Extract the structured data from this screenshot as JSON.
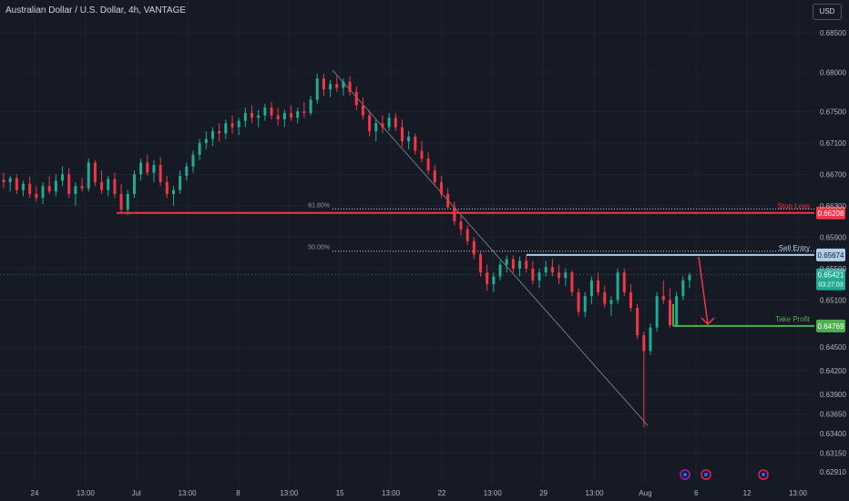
{
  "header": {
    "symbol": "Australian Dollar / U.S. Dollar, 4h, VANTAGE",
    "currency_button": "USD"
  },
  "colors": {
    "background": "#161a25",
    "grid": "#1f2330",
    "up": "#22ab94",
    "down": "#f23645",
    "stop_loss": "#f23645",
    "take_profit": "#4caf50",
    "sell_entry": "#b0cfe6",
    "axis_text": "#b2b5be"
  },
  "chart_data": {
    "type": "candlestick",
    "ylim": [
      0.6275,
      0.6878
    ],
    "y_ticks": [
      "0.68500",
      "0.68000",
      "0.67500",
      "0.67100",
      "0.66700",
      "0.66300",
      "0.65900",
      "0.65500",
      "0.65100",
      "0.64500",
      "0.64200",
      "0.63900",
      "0.63650",
      "0.63400",
      "0.63150",
      "0.62910"
    ],
    "x_ticks": [
      "24",
      "13:00",
      "Jul",
      "13:00",
      "8",
      "13:00",
      "15",
      "13:00",
      "22",
      "13:00",
      "29",
      "13:00",
      "Aug",
      "6",
      "12",
      "13:00"
    ],
    "series": [
      {
        "values": [
          [
            0.6663,
            0.6672,
            0.6652,
            0.666
          ],
          [
            0.666,
            0.6668,
            0.6648,
            0.6665
          ],
          [
            0.6665,
            0.667,
            0.6645,
            0.665
          ],
          [
            0.665,
            0.6662,
            0.6642,
            0.6658
          ],
          [
            0.6658,
            0.6667,
            0.664,
            0.6645
          ],
          [
            0.6645,
            0.6655,
            0.6635,
            0.664
          ],
          [
            0.664,
            0.666,
            0.6632,
            0.6655
          ],
          [
            0.6655,
            0.6668,
            0.6645,
            0.6648
          ],
          [
            0.6648,
            0.667,
            0.6642,
            0.6662
          ],
          [
            0.6662,
            0.668,
            0.6655,
            0.667
          ],
          [
            0.667,
            0.6678,
            0.664,
            0.6645
          ],
          [
            0.6645,
            0.666,
            0.663,
            0.6655
          ],
          [
            0.6655,
            0.6665,
            0.6648,
            0.6652
          ],
          [
            0.6652,
            0.669,
            0.6648,
            0.6685
          ],
          [
            0.6685,
            0.6688,
            0.6655,
            0.666
          ],
          [
            0.666,
            0.6675,
            0.6645,
            0.665
          ],
          [
            0.665,
            0.6668,
            0.6642,
            0.6664
          ],
          [
            0.6664,
            0.6672,
            0.664,
            0.6645
          ],
          [
            0.6645,
            0.6658,
            0.662,
            0.6625
          ],
          [
            0.6625,
            0.665,
            0.6618,
            0.6645
          ],
          [
            0.6645,
            0.6675,
            0.664,
            0.667
          ],
          [
            0.667,
            0.669,
            0.6662,
            0.6685
          ],
          [
            0.6685,
            0.6695,
            0.6668,
            0.6672
          ],
          [
            0.6672,
            0.6688,
            0.666,
            0.6682
          ],
          [
            0.6682,
            0.6692,
            0.6655,
            0.666
          ],
          [
            0.666,
            0.6668,
            0.664,
            0.6645
          ],
          [
            0.6645,
            0.6655,
            0.663,
            0.665
          ],
          [
            0.665,
            0.6675,
            0.6645,
            0.6668
          ],
          [
            0.6668,
            0.6685,
            0.6662,
            0.668
          ],
          [
            0.668,
            0.67,
            0.6672,
            0.6695
          ],
          [
            0.6695,
            0.6715,
            0.6688,
            0.671
          ],
          [
            0.671,
            0.6725,
            0.6702,
            0.6715
          ],
          [
            0.6715,
            0.673,
            0.6706,
            0.6725
          ],
          [
            0.6725,
            0.6735,
            0.6712,
            0.6722
          ],
          [
            0.6722,
            0.674,
            0.6715,
            0.6735
          ],
          [
            0.6735,
            0.6745,
            0.6722,
            0.673
          ],
          [
            0.673,
            0.6742,
            0.672,
            0.6738
          ],
          [
            0.6738,
            0.6755,
            0.673,
            0.6748
          ],
          [
            0.6748,
            0.6758,
            0.6735,
            0.6742
          ],
          [
            0.6742,
            0.6752,
            0.673,
            0.6745
          ],
          [
            0.6745,
            0.676,
            0.6738,
            0.6755
          ],
          [
            0.6755,
            0.6762,
            0.674,
            0.6745
          ],
          [
            0.6745,
            0.6755,
            0.6732,
            0.674
          ],
          [
            0.674,
            0.6752,
            0.673,
            0.6748
          ],
          [
            0.6748,
            0.6758,
            0.6738,
            0.6742
          ],
          [
            0.6742,
            0.6755,
            0.6735,
            0.675
          ],
          [
            0.675,
            0.6762,
            0.6742,
            0.6748
          ],
          [
            0.6748,
            0.677,
            0.6745,
            0.6765
          ],
          [
            0.6765,
            0.6798,
            0.676,
            0.6792
          ],
          [
            0.6792,
            0.6798,
            0.677,
            0.6778
          ],
          [
            0.6778,
            0.679,
            0.6768,
            0.6785
          ],
          [
            0.6785,
            0.6795,
            0.6775,
            0.678
          ],
          [
            0.678,
            0.6792,
            0.677,
            0.6788
          ],
          [
            0.6788,
            0.6795,
            0.677,
            0.6775
          ],
          [
            0.6775,
            0.6782,
            0.6752,
            0.6758
          ],
          [
            0.6758,
            0.6768,
            0.674,
            0.6745
          ],
          [
            0.6745,
            0.6752,
            0.6718,
            0.6725
          ],
          [
            0.6725,
            0.674,
            0.6712,
            0.6735
          ],
          [
            0.6735,
            0.6745,
            0.6722,
            0.673
          ],
          [
            0.673,
            0.6748,
            0.6725,
            0.6742
          ],
          [
            0.6742,
            0.6748,
            0.6725,
            0.673
          ],
          [
            0.673,
            0.674,
            0.6705,
            0.6712
          ],
          [
            0.6712,
            0.6725,
            0.6702,
            0.6718
          ],
          [
            0.6718,
            0.6722,
            0.6695,
            0.67
          ],
          [
            0.67,
            0.6712,
            0.6685,
            0.669
          ],
          [
            0.669,
            0.6698,
            0.667,
            0.6675
          ],
          [
            0.6675,
            0.6682,
            0.6655,
            0.666
          ],
          [
            0.666,
            0.6668,
            0.664,
            0.6645
          ],
          [
            0.6645,
            0.6652,
            0.6625,
            0.6628
          ],
          [
            0.6628,
            0.6635,
            0.6605,
            0.661
          ],
          [
            0.661,
            0.6618,
            0.6592,
            0.66
          ],
          [
            0.66,
            0.6605,
            0.658,
            0.6585
          ],
          [
            0.6585,
            0.659,
            0.6562,
            0.6568
          ],
          [
            0.6568,
            0.6572,
            0.654,
            0.6545
          ],
          [
            0.6545,
            0.6555,
            0.6522,
            0.653
          ],
          [
            0.653,
            0.6545,
            0.652,
            0.654
          ],
          [
            0.654,
            0.656,
            0.6535,
            0.6555
          ],
          [
            0.6555,
            0.6567,
            0.6545,
            0.6562
          ],
          [
            0.6562,
            0.6567,
            0.6545,
            0.655
          ],
          [
            0.655,
            0.6565,
            0.654,
            0.656
          ],
          [
            0.656,
            0.6567,
            0.6545,
            0.655
          ],
          [
            0.655,
            0.656,
            0.653,
            0.6535
          ],
          [
            0.6535,
            0.655,
            0.6525,
            0.6545
          ],
          [
            0.6545,
            0.656,
            0.654,
            0.6552
          ],
          [
            0.6552,
            0.6562,
            0.654,
            0.6545
          ],
          [
            0.6545,
            0.6555,
            0.653,
            0.6538
          ],
          [
            0.6538,
            0.655,
            0.6528,
            0.6545
          ],
          [
            0.6545,
            0.6548,
            0.6515,
            0.652
          ],
          [
            0.652,
            0.6525,
            0.649,
            0.6495
          ],
          [
            0.6495,
            0.652,
            0.6488,
            0.6515
          ],
          [
            0.6515,
            0.654,
            0.6505,
            0.6535
          ],
          [
            0.6535,
            0.6545,
            0.6515,
            0.652
          ],
          [
            0.652,
            0.6528,
            0.65,
            0.6505
          ],
          [
            0.6505,
            0.6515,
            0.649,
            0.651
          ],
          [
            0.651,
            0.655,
            0.6505,
            0.6545
          ],
          [
            0.6545,
            0.655,
            0.6515,
            0.652
          ],
          [
            0.652,
            0.653,
            0.6495,
            0.65
          ],
          [
            0.65,
            0.6505,
            0.646,
            0.6465
          ],
          [
            0.6465,
            0.647,
            0.6348,
            0.6445
          ],
          [
            0.6445,
            0.648,
            0.644,
            0.6475
          ],
          [
            0.6475,
            0.652,
            0.647,
            0.6515
          ],
          [
            0.6515,
            0.6535,
            0.6505,
            0.651
          ],
          [
            0.651,
            0.6525,
            0.6475,
            0.6478
          ],
          [
            0.6478,
            0.652,
            0.6476,
            0.6515
          ],
          [
            0.6515,
            0.654,
            0.651,
            0.6535
          ],
          [
            0.6535,
            0.6545,
            0.6525,
            0.6542
          ]
        ]
      }
    ],
    "levels": [
      {
        "label": "Stop Loss",
        "price": "0.66208",
        "value": 0.66208
      },
      {
        "label": "Sell Entry",
        "price": "0.65674",
        "value": 0.65674
      },
      {
        "label": "Take Profit",
        "price": "0.64769",
        "value": 0.64769
      }
    ],
    "fib_levels": [
      {
        "label": "61.80%",
        "value": 0.6626
      },
      {
        "label": "50.00%",
        "value": 0.65722
      }
    ],
    "current_price": {
      "price": "0.65421",
      "countdown": "03:27:03",
      "value": 0.65421
    }
  }
}
